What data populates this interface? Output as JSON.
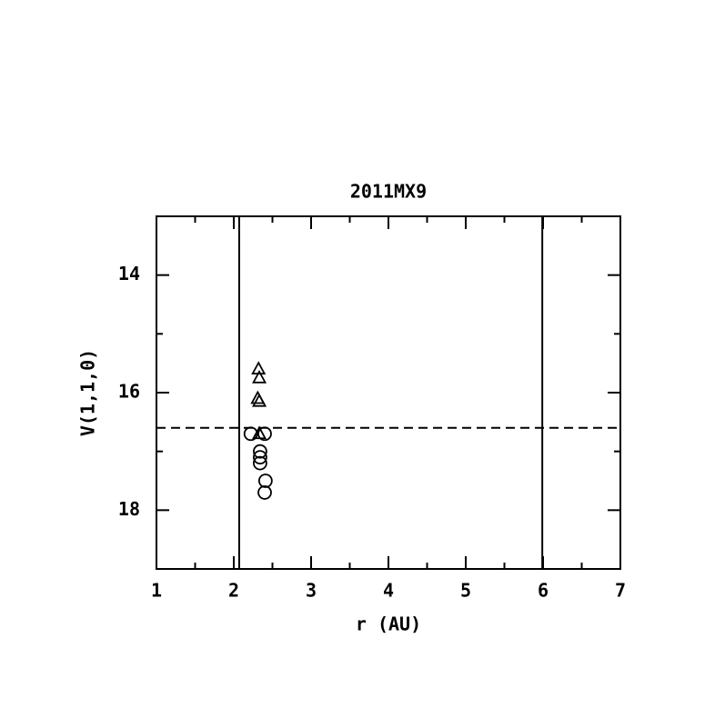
{
  "chart_data": {
    "type": "scatter",
    "title": "2011MX9",
    "x_label": "r (AU)",
    "y_label": "V(1,1,0)",
    "xlim": [
      1,
      7
    ],
    "xticks": [
      1,
      2,
      3,
      4,
      5,
      6,
      7
    ],
    "ylim": [
      13,
      19
    ],
    "yticks": [
      14,
      16,
      18
    ],
    "y_inverted": true,
    "series": [
      {
        "marker": "triangle",
        "color": "#000000",
        "x": [
          2.32,
          2.33,
          2.31,
          2.33,
          2.33
        ],
        "values": [
          15.6,
          15.75,
          16.1,
          16.15,
          16.7
        ]
      },
      {
        "marker": "circle",
        "color": "#000000",
        "x": [
          2.22,
          2.4,
          2.34,
          2.34,
          2.34,
          2.41,
          2.4
        ],
        "values": [
          16.7,
          16.7,
          17.0,
          17.1,
          17.2,
          17.5,
          17.7
        ]
      }
    ],
    "vlines": [
      2.07,
      5.99
    ],
    "hlines": [
      16.6
    ],
    "hline_style": "dashed"
  }
}
